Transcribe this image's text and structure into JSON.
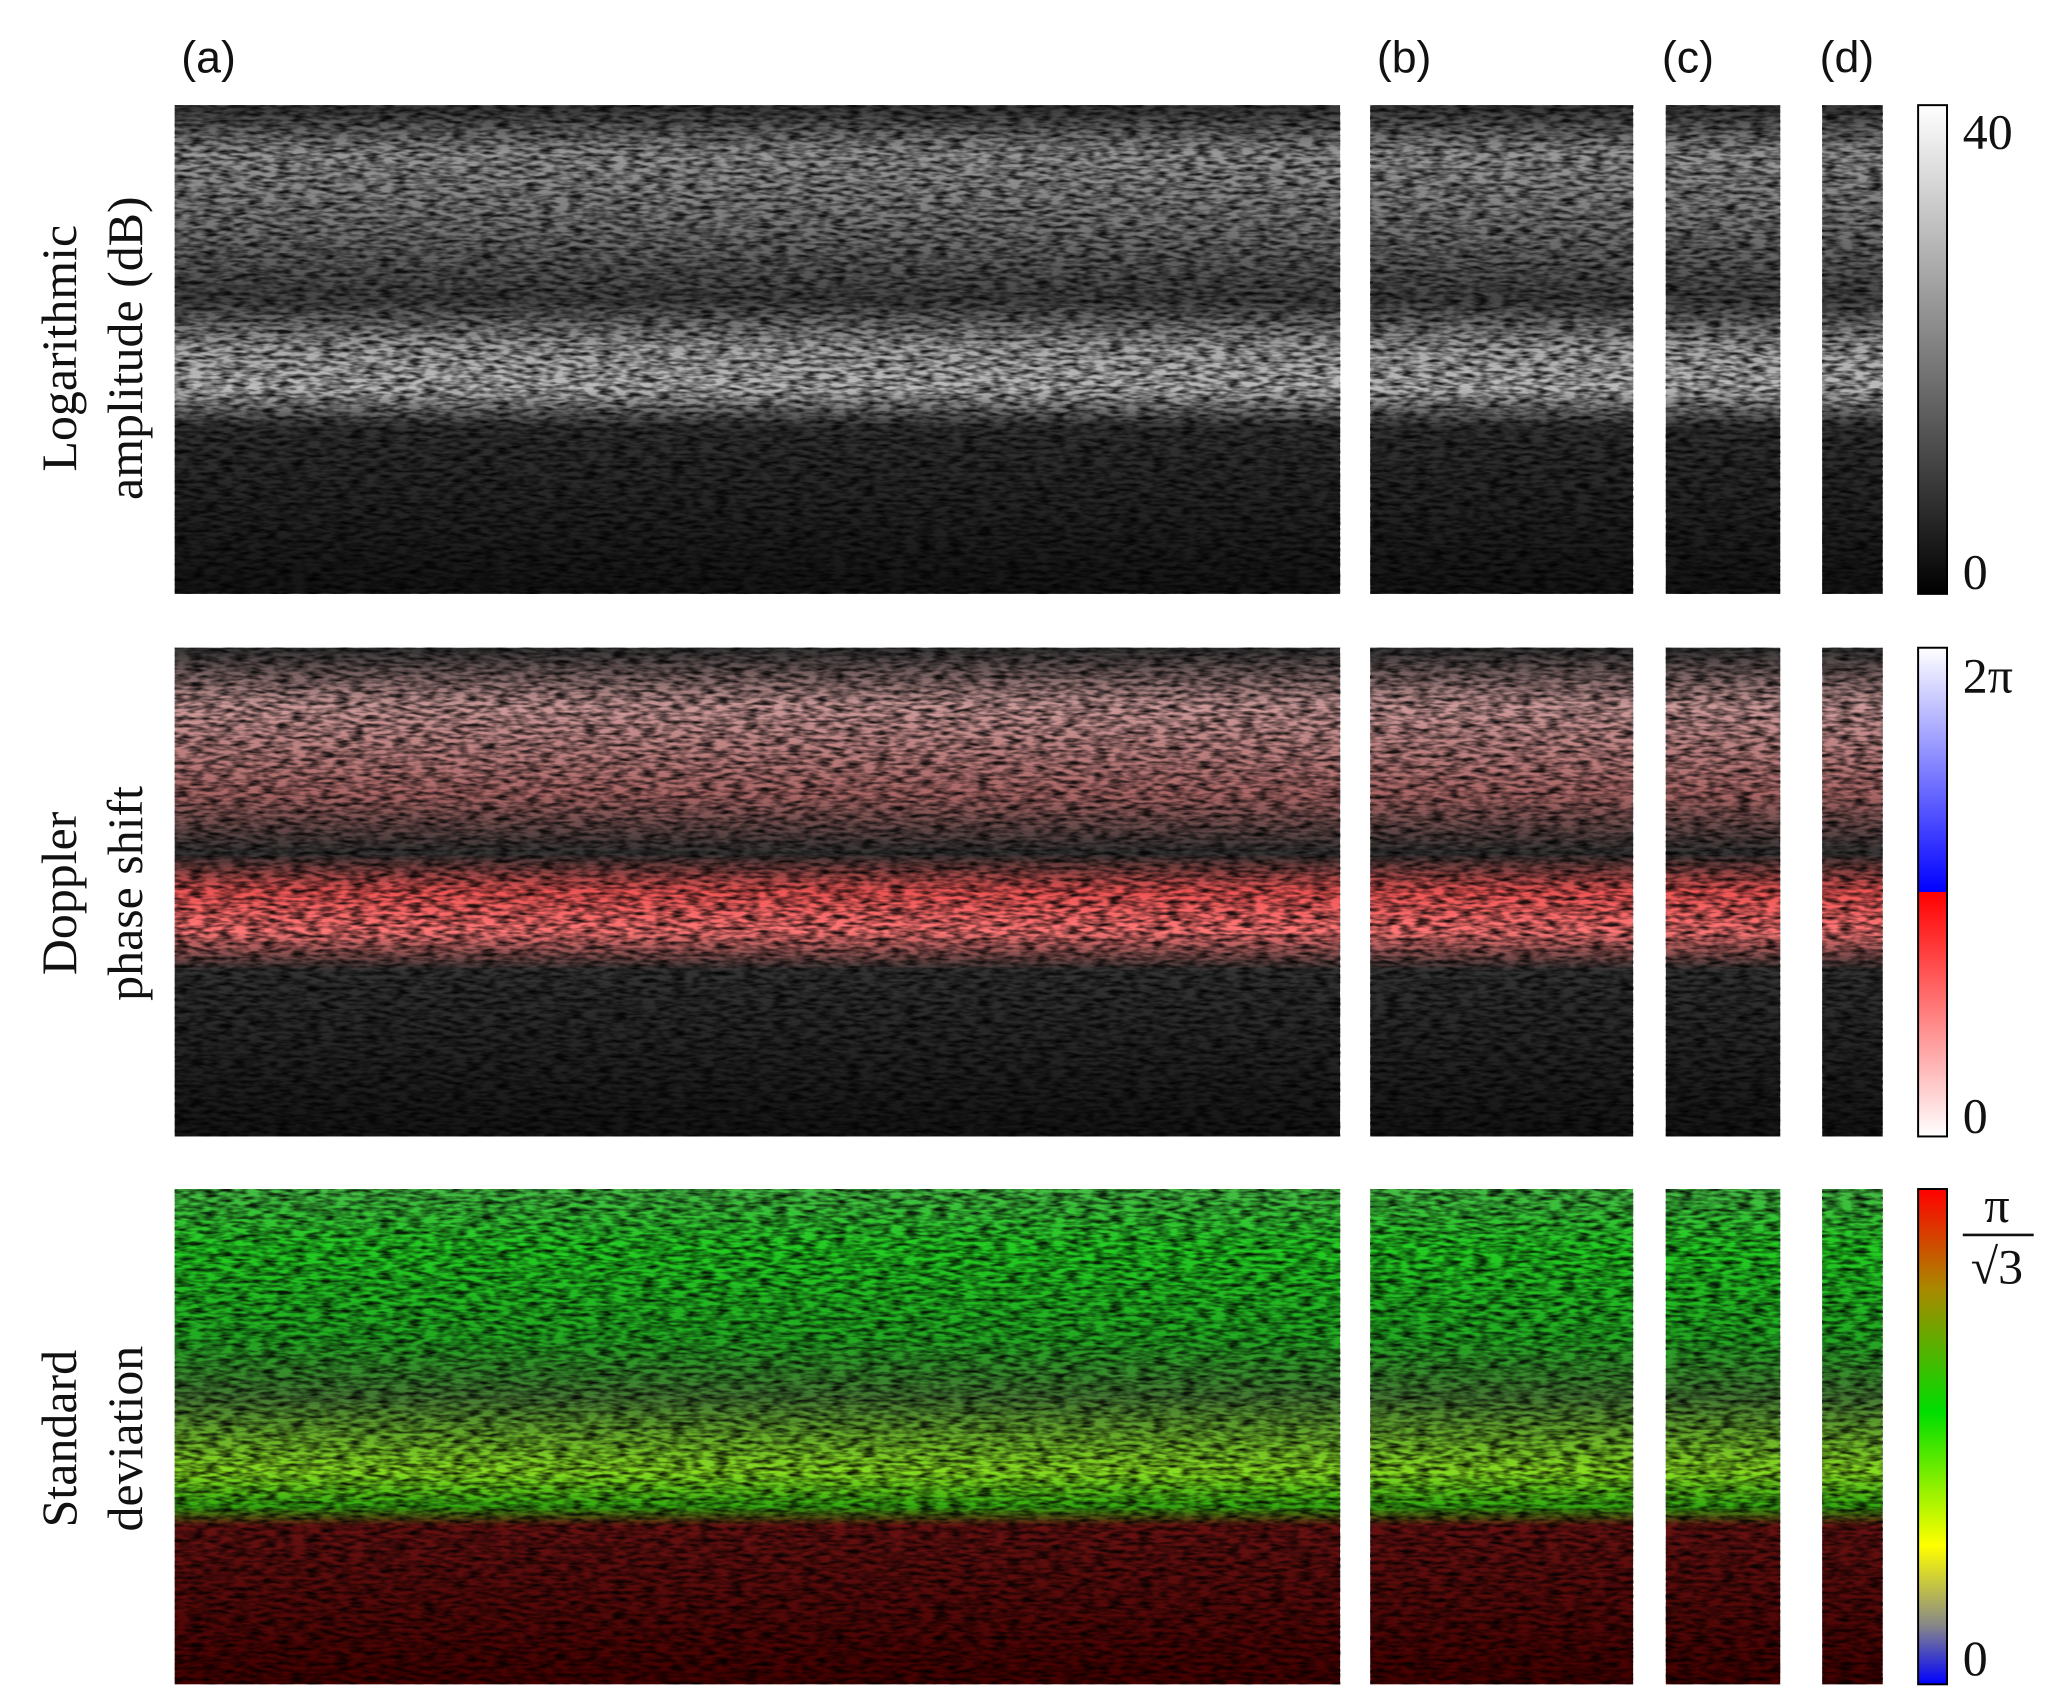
{
  "panels": [
    "(a)",
    "(b)",
    "(c)",
    "(d)"
  ],
  "rows": [
    {
      "label_lines": [
        "Logarithmic",
        "amplitude (dB)"
      ],
      "colorbar": {
        "top": "40",
        "bottom": "0"
      }
    },
    {
      "label_lines": [
        "Doppler",
        "phase shift"
      ],
      "colorbar": {
        "top": "2π",
        "bottom": "0"
      }
    },
    {
      "label_lines": [
        "Standard",
        "deviation"
      ],
      "colorbar": {
        "top_numerator": "π",
        "top_denominator": "√3",
        "bottom": "0"
      }
    }
  ]
}
